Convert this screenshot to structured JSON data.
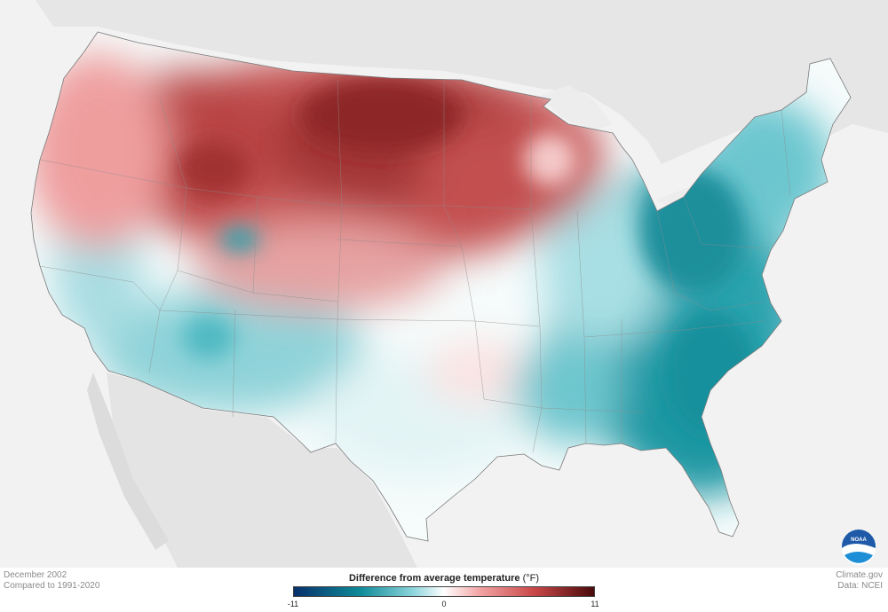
{
  "caption": {
    "line1": "December 2002",
    "line2": "Compared to 1991-2020"
  },
  "credits": {
    "line1": "Climate.gov",
    "line2": "Data: NCEI"
  },
  "legend": {
    "title": "Difference from average temperature",
    "unit": "(°F)",
    "min_label": "-11",
    "mid_label": "0",
    "max_label": "11",
    "colors": [
      "#08306b",
      "#0f8a98",
      "#5fc0cb",
      "#ffffff",
      "#f2a3a3",
      "#c94848",
      "#4a0a0a"
    ]
  },
  "logo": {
    "text": "NOAA"
  },
  "map": {
    "regions": [
      {
        "name": "northern-plains-warm",
        "anomaly": "warm"
      },
      {
        "name": "pacific-northwest-warm",
        "anomaly": "warm"
      },
      {
        "name": "southwest-cool",
        "anomaly": "cool"
      },
      {
        "name": "southeast-cool",
        "anomaly": "cool"
      },
      {
        "name": "northeast-cool",
        "anomaly": "cool"
      }
    ]
  }
}
